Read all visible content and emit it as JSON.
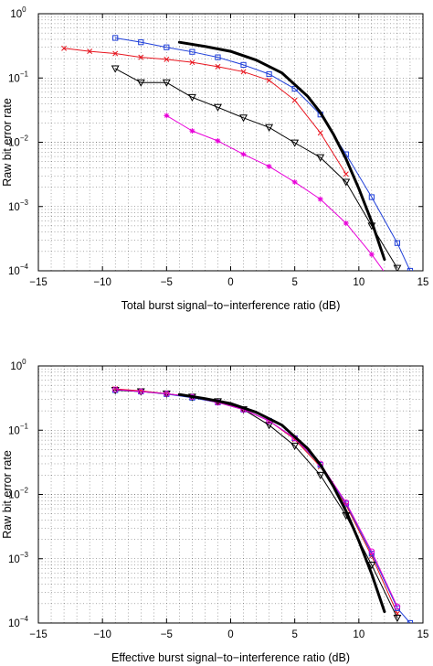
{
  "chart_data": [
    {
      "type": "line",
      "xlabel": "Total burst signal−to−interference ratio (dB)",
      "ylabel": "Raw bit error rate",
      "yscale": "log",
      "xlim": [
        -15,
        15
      ],
      "ylim": [
        0.0001,
        1
      ],
      "xticks": [
        -15,
        -10,
        -5,
        0,
        5,
        10,
        15
      ],
      "xtick_labels": [
        "−15",
        "−10",
        "−5",
        "0",
        "5",
        "10",
        "15"
      ],
      "ytick_base": "10",
      "ytick_exponents": [
        "0",
        "−1",
        "−2",
        "−3",
        "−4"
      ],
      "grid": true,
      "series": [
        {
          "color": "#1f3fd9",
          "marker": "square",
          "linewidth": 1,
          "x": [
            -9,
            -7,
            -5,
            -3,
            -1,
            1,
            3,
            5,
            7,
            9,
            11,
            13,
            14
          ],
          "y": [
            0.42,
            0.36,
            0.3,
            0.255,
            0.21,
            0.16,
            0.115,
            0.068,
            0.027,
            0.0065,
            0.0014,
            0.00027,
            0.0001
          ]
        },
        {
          "color": "#e8141e",
          "marker": "x",
          "linewidth": 1,
          "x": [
            -13,
            -11,
            -9,
            -7,
            -5,
            -3,
            -1,
            1,
            3,
            5,
            7,
            9
          ],
          "y": [
            0.29,
            0.26,
            0.24,
            0.21,
            0.195,
            0.175,
            0.15,
            0.125,
            0.092,
            0.045,
            0.014,
            0.0032
          ]
        },
        {
          "color": "#000000",
          "marker": "triangle-down",
          "linewidth": 1,
          "x": [
            -9,
            -7,
            -5,
            -3,
            -1,
            1,
            3,
            5,
            7,
            9,
            11,
            13
          ],
          "y": [
            0.14,
            0.085,
            0.085,
            0.05,
            0.035,
            0.024,
            0.017,
            0.0098,
            0.0058,
            0.0024,
            0.0005,
            0.00011
          ]
        },
        {
          "color": "#e800d8",
          "marker": "asterisk",
          "linewidth": 1,
          "x": [
            -5,
            -3,
            -1,
            1,
            3,
            5,
            7,
            9,
            11,
            13
          ],
          "y": [
            0.026,
            0.015,
            0.0105,
            0.0065,
            0.0042,
            0.0024,
            0.0013,
            0.00055,
            0.00018,
            5e-05
          ]
        },
        {
          "color": "#000000",
          "marker": "none",
          "linewidth": 3,
          "x": [
            -4,
            -2,
            0,
            2,
            4,
            6,
            7,
            8,
            9,
            10,
            11,
            12
          ],
          "y": [
            0.36,
            0.31,
            0.26,
            0.19,
            0.12,
            0.052,
            0.029,
            0.0135,
            0.0055,
            0.0019,
            0.00058,
            0.00015
          ]
        }
      ]
    },
    {
      "type": "line",
      "xlabel": "Effective burst signal−to−interference ratio (dB)",
      "ylabel": "Raw bit error rate",
      "yscale": "log",
      "xlim": [
        -15,
        15
      ],
      "ylim": [
        0.0001,
        1
      ],
      "xticks": [
        -15,
        -10,
        -5,
        0,
        5,
        10,
        15
      ],
      "xtick_labels": [
        "−15",
        "−10",
        "−5",
        "0",
        "5",
        "10",
        "15"
      ],
      "ytick_base": "10",
      "ytick_exponents": [
        "0",
        "−1",
        "−2",
        "−3",
        "−4"
      ],
      "grid": true,
      "series": [
        {
          "color": "#e8141e",
          "marker": "x",
          "linewidth": 1,
          "x": [
            -9,
            -7,
            -5,
            -3,
            -1,
            1,
            3,
            5,
            7,
            9,
            11,
            13
          ],
          "y": [
            0.44,
            0.41,
            0.37,
            0.33,
            0.27,
            0.21,
            0.14,
            0.072,
            0.027,
            0.0068,
            0.0011,
            0.00014
          ]
        },
        {
          "color": "#1f3fd9",
          "marker": "square",
          "linewidth": 1,
          "x": [
            -9,
            -7,
            -5,
            -3,
            -1,
            1,
            3,
            5,
            7,
            9,
            11,
            13,
            14
          ],
          "y": [
            0.42,
            0.4,
            0.365,
            0.32,
            0.27,
            0.21,
            0.14,
            0.075,
            0.029,
            0.0072,
            0.0012,
            0.00017,
            0.0001
          ]
        },
        {
          "color": "#000000",
          "marker": "triangle-down",
          "linewidth": 1,
          "x": [
            -9,
            -7,
            -5,
            -3,
            -1,
            1,
            3,
            5,
            7,
            9,
            11,
            13
          ],
          "y": [
            0.42,
            0.4,
            0.37,
            0.33,
            0.28,
            0.21,
            0.12,
            0.057,
            0.02,
            0.0047,
            0.0008,
            0.00012
          ]
        },
        {
          "color": "#e800d8",
          "marker": "circle",
          "linewidth": 1,
          "x": [
            -9,
            -7,
            -5,
            -3,
            -1,
            1,
            3,
            5,
            7,
            9,
            11,
            13
          ],
          "y": [
            0.43,
            0.4,
            0.37,
            0.33,
            0.27,
            0.21,
            0.14,
            0.075,
            0.03,
            0.0075,
            0.0013,
            0.00018
          ]
        },
        {
          "color": "#000000",
          "marker": "none",
          "linewidth": 3,
          "x": [
            -4,
            -2,
            0,
            2,
            4,
            6,
            7,
            8,
            9,
            10,
            11,
            12
          ],
          "y": [
            0.36,
            0.31,
            0.26,
            0.19,
            0.12,
            0.052,
            0.029,
            0.0135,
            0.0055,
            0.0019,
            0.00058,
            0.00015
          ]
        }
      ]
    }
  ]
}
